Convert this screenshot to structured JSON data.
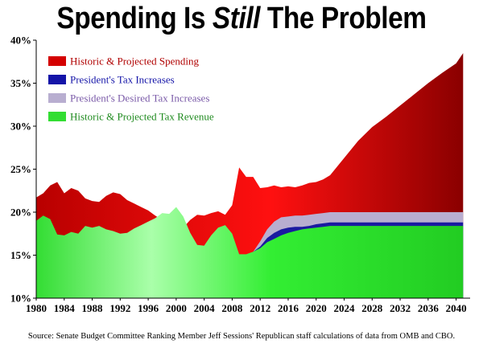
{
  "title": {
    "part1": "Spending Is ",
    "part2": "Still",
    "part3": " The Problem"
  },
  "source": "Source: Senate Budget Committee Ranking Member Jeff Sessions' Republican staff calculations of data from OMB and CBO.",
  "chart_data": {
    "type": "area",
    "title": "Spending Is Still The Problem",
    "xlabel": "",
    "ylabel": "",
    "xlim": [
      1980,
      2042
    ],
    "ylim": [
      10,
      40
    ],
    "y_ticks": [
      "10%",
      "15%",
      "20%",
      "25%",
      "30%",
      "35%",
      "40%"
    ],
    "x_ticks": [
      "1980",
      "1984",
      "1988",
      "1992",
      "1996",
      "2000",
      "2004",
      "2008",
      "2012",
      "2016",
      "2020",
      "2024",
      "2028",
      "2032",
      "2036",
      "2040"
    ],
    "legend_position": "top-left",
    "colors": {
      "spending": "#cc0000",
      "tax_increases": "#1a1aa0",
      "desired_tax_increases": "#b8aed0",
      "revenue": "#33dd33"
    },
    "series": [
      {
        "name": "Historic & Projected Spending",
        "x": [
          1980,
          1981,
          1982,
          1983,
          1984,
          1985,
          1986,
          1987,
          1988,
          1989,
          1990,
          1991,
          1992,
          1993,
          1994,
          1995,
          1996,
          1997,
          1998,
          1999,
          2000,
          2001,
          2002,
          2003,
          2004,
          2005,
          2006,
          2007,
          2008,
          2009,
          2010,
          2011,
          2012,
          2013,
          2014,
          2015,
          2016,
          2017,
          2018,
          2019,
          2020,
          2021,
          2022,
          2024,
          2026,
          2028,
          2030,
          2032,
          2034,
          2036,
          2038,
          2040,
          2041
        ],
        "values": [
          21.7,
          22.2,
          23.1,
          23.5,
          22.2,
          22.8,
          22.5,
          21.6,
          21.3,
          21.2,
          21.9,
          22.3,
          22.1,
          21.4,
          21.0,
          20.6,
          20.2,
          19.6,
          19.1,
          18.6,
          18.2,
          18.2,
          19.1,
          19.7,
          19.6,
          19.9,
          20.1,
          19.7,
          20.8,
          25.2,
          24.1,
          24.1,
          22.8,
          22.9,
          23.1,
          22.9,
          23.0,
          22.9,
          23.1,
          23.4,
          23.5,
          23.8,
          24.3,
          26.3,
          28.3,
          29.9,
          31.1,
          32.4,
          33.7,
          35.0,
          36.2,
          37.3,
          38.5
        ]
      },
      {
        "name": "Historic & Projected Tax Revenue",
        "x": [
          1980,
          1981,
          1982,
          1983,
          1984,
          1985,
          1986,
          1987,
          1988,
          1989,
          1990,
          1991,
          1992,
          1993,
          1994,
          1995,
          1996,
          1997,
          1998,
          1999,
          2000,
          2001,
          2002,
          2003,
          2004,
          2005,
          2006,
          2007,
          2008,
          2009,
          2010,
          2011,
          2012,
          2013,
          2014,
          2015,
          2016,
          2017,
          2018,
          2019,
          2020,
          2021,
          2022,
          2024,
          2026,
          2028,
          2030,
          2032,
          2034,
          2036,
          2038,
          2040,
          2041
        ],
        "values": [
          19.0,
          19.6,
          19.2,
          17.4,
          17.3,
          17.7,
          17.5,
          18.4,
          18.2,
          18.4,
          18.0,
          17.8,
          17.5,
          17.6,
          18.1,
          18.5,
          18.9,
          19.3,
          19.9,
          19.8,
          20.6,
          19.5,
          17.6,
          16.2,
          16.1,
          17.3,
          18.2,
          18.5,
          17.5,
          15.1,
          15.1,
          15.4,
          15.8,
          16.5,
          16.9,
          17.3,
          17.6,
          17.8,
          18.0,
          18.1,
          18.2,
          18.3,
          18.4,
          18.4,
          18.4,
          18.4,
          18.4,
          18.4,
          18.4,
          18.4,
          18.4,
          18.4,
          18.4
        ]
      },
      {
        "name": "President's Tax Increases",
        "x": [
          2011,
          2012,
          2013,
          2014,
          2015,
          2016,
          2017,
          2018,
          2019,
          2020,
          2021,
          2022,
          2024,
          2026,
          2028,
          2030,
          2032,
          2034,
          2036,
          2038,
          2040,
          2041
        ],
        "values": [
          15.4,
          16.0,
          17.0,
          17.6,
          18.0,
          18.2,
          18.3,
          18.3,
          18.4,
          18.6,
          18.7,
          18.8,
          18.8,
          18.8,
          18.8,
          18.8,
          18.8,
          18.8,
          18.8,
          18.8,
          18.8,
          18.8
        ]
      },
      {
        "name": "President's Desired Tax Increases",
        "x": [
          2011,
          2012,
          2013,
          2014,
          2015,
          2016,
          2017,
          2018,
          2019,
          2020,
          2021,
          2022,
          2024,
          2026,
          2028,
          2030,
          2032,
          2034,
          2036,
          2038,
          2040,
          2041
        ],
        "values": [
          15.4,
          16.6,
          18.0,
          18.9,
          19.4,
          19.5,
          19.6,
          19.6,
          19.7,
          19.8,
          19.9,
          20.0,
          20.0,
          20.0,
          20.0,
          20.0,
          20.0,
          20.0,
          20.0,
          20.0,
          20.0,
          20.0
        ]
      }
    ]
  }
}
